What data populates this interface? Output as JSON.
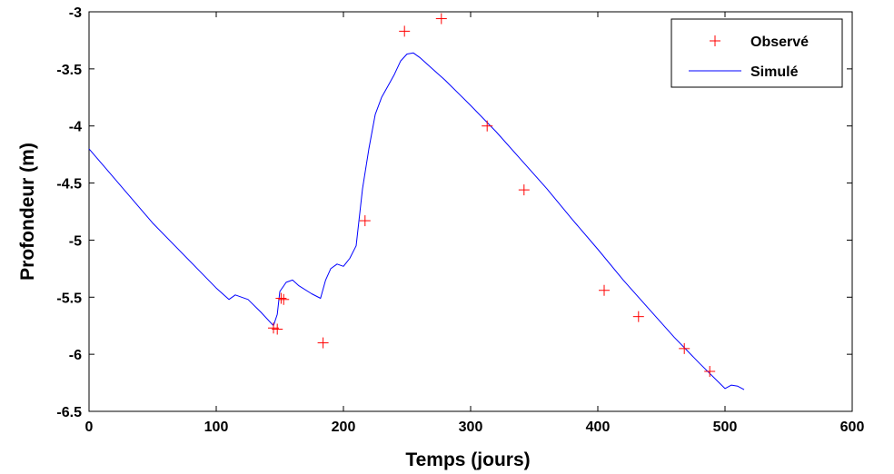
{
  "chart_data": {
    "type": "scatter",
    "xlabel": "Temps (jours)",
    "ylabel": "Profondeur (m)",
    "xlim": [
      0,
      600
    ],
    "ylim": [
      -6.5,
      -3
    ],
    "xticks": [
      0,
      100,
      200,
      300,
      400,
      500,
      600
    ],
    "yticks": [
      -3,
      -3.5,
      -4,
      -4.5,
      -5,
      -5.5,
      -6,
      -6.5
    ],
    "grid": false,
    "legend_position": "top-right",
    "series": [
      {
        "name": "Observé",
        "kind": "markers",
        "marker": "+",
        "color": "#ff0000",
        "x": [
          145,
          148,
          151,
          153,
          184,
          217,
          248,
          277,
          313,
          342,
          405,
          432,
          468,
          488
        ],
        "y": [
          -5.77,
          -5.78,
          -5.51,
          -5.52,
          -5.9,
          -4.83,
          -3.17,
          -3.06,
          -4.0,
          -4.56,
          -5.44,
          -5.67,
          -5.95,
          -6.15
        ]
      },
      {
        "name": "Simulé",
        "kind": "line",
        "color": "#0000ff",
        "x": [
          0,
          50,
          100,
          110,
          115,
          125,
          135,
          145,
          148,
          150,
          155,
          160,
          165,
          175,
          182,
          186,
          190,
          195,
          200,
          205,
          210,
          215,
          220,
          225,
          230,
          235,
          240,
          245,
          250,
          255,
          260,
          270,
          280,
          300,
          320,
          340,
          360,
          380,
          400,
          420,
          440,
          460,
          480,
          500,
          505,
          510,
          515
        ],
        "y": [
          -4.2,
          -4.85,
          -5.42,
          -5.52,
          -5.48,
          -5.52,
          -5.63,
          -5.75,
          -5.65,
          -5.45,
          -5.37,
          -5.35,
          -5.4,
          -5.47,
          -5.51,
          -5.35,
          -5.25,
          -5.21,
          -5.23,
          -5.16,
          -5.05,
          -4.55,
          -4.2,
          -3.9,
          -3.75,
          -3.65,
          -3.55,
          -3.43,
          -3.37,
          -3.36,
          -3.4,
          -3.5,
          -3.6,
          -3.82,
          -4.05,
          -4.3,
          -4.55,
          -4.82,
          -5.08,
          -5.35,
          -5.6,
          -5.85,
          -6.08,
          -6.3,
          -6.27,
          -6.28,
          -6.31
        ]
      }
    ]
  }
}
